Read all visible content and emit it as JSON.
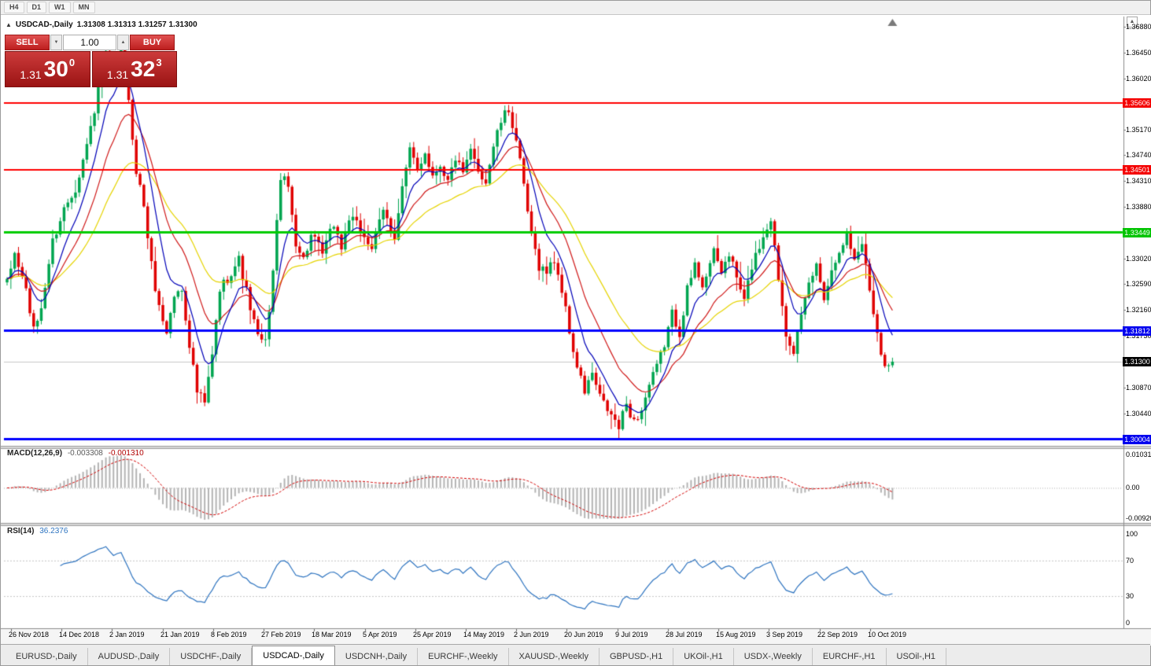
{
  "toolbar": {
    "timeframes": [
      "H4",
      "D1",
      "W1",
      "MN"
    ]
  },
  "window": {
    "scroll_up_icon": "▲"
  },
  "chart": {
    "title": "USDCAD-,Daily",
    "ohlc": "1.31308 1.31313 1.31257 1.31300",
    "collapse_icon": "▲"
  },
  "trade_panel": {
    "sell_label": "SELL",
    "buy_label": "BUY",
    "volume": "1.00",
    "spin_up_icon": "▲",
    "spin_down_icon": "▼",
    "sell_price": {
      "main": "1.31",
      "pips": "30",
      "sup": "0"
    },
    "buy_price": {
      "main": "1.31",
      "pips": "32",
      "sup": "3"
    }
  },
  "price_axis": {
    "ticks": [
      "1.36880",
      "1.36450",
      "1.36020",
      "1.35170",
      "1.34740",
      "1.34310",
      "1.33880",
      "1.33020",
      "1.32590",
      "1.32160",
      "1.31730",
      "1.30870",
      "1.30440"
    ],
    "tick_values": [
      1.3688,
      1.3645,
      1.3602,
      1.3517,
      1.3474,
      1.3431,
      1.3388,
      1.3302,
      1.3259,
      1.3216,
      1.3173,
      1.3087,
      1.3044
    ],
    "badges": [
      {
        "label": "1.35606",
        "value": 1.35606,
        "color": "#f40000",
        "type": "resistance-line"
      },
      {
        "label": "1.34501",
        "value": 1.34501,
        "color": "#f40000",
        "type": "resistance-line"
      },
      {
        "label": "1.33449",
        "value": 1.33449,
        "color": "#00c400",
        "type": "support-line"
      },
      {
        "label": "1.31812",
        "value": 1.31812,
        "color": "#0000ee",
        "type": "support-line"
      },
      {
        "label": "1.30004",
        "value": 1.30004,
        "color": "#0000ee",
        "type": "support-line"
      },
      {
        "label": "1.31300",
        "value": 1.313,
        "color": "#000000",
        "type": "current-price"
      }
    ]
  },
  "macd": {
    "name": "MACD(12,26,9)",
    "value_main": "-0.003308",
    "value_signal": "-0.001310",
    "axis": [
      "0.010311",
      "0.00",
      "-0.009203"
    ]
  },
  "rsi": {
    "name": "RSI(14)",
    "value": "36.2376",
    "axis": [
      "100",
      "70",
      "30",
      "0"
    ]
  },
  "date_axis": [
    "26 Nov 2018",
    "14 Dec 2018",
    "2 Jan 2019",
    "21 Jan 2019",
    "8 Feb 2019",
    "27 Feb 2019",
    "18 Mar 2019",
    "5 Apr 2019",
    "25 Apr 2019",
    "14 May 2019",
    "2 Jun 2019",
    "20 Jun 2019",
    "9 Jul 2019",
    "28 Jul 2019",
    "15 Aug 2019",
    "3 Sep 2019",
    "22 Sep 2019",
    "10 Oct 2019"
  ],
  "tabs": [
    "EURUSD-,Daily",
    "AUDUSD-,Daily",
    "USDCHF-,Daily",
    "USDCAD-,Daily",
    "USDCNH-,Daily",
    "EURCHF-,Weekly",
    "XAUUSD-,Weekly",
    "GBPUSD-,H1",
    "UKOil-,H1",
    "USDX-,Weekly",
    "EURCHF-,H1",
    "USOil-,H1"
  ],
  "active_tab": "USDCAD-,Daily",
  "chart_data": {
    "type": "candlestick",
    "symbol": "USDCAD-",
    "timeframe": "Daily",
    "current_bar": {
      "open": 1.31308,
      "high": 1.31313,
      "low": 1.31257,
      "close": 1.313
    },
    "bid": 1.313,
    "ask": 1.31323,
    "num_candles": 234,
    "last_close": 1.313,
    "y_range": [
      1.299,
      1.3705
    ],
    "price_path_anchors": [
      [
        0,
        1.326
      ],
      [
        2,
        1.331
      ],
      [
        5,
        1.325
      ],
      [
        7,
        1.318
      ],
      [
        9,
        1.322
      ],
      [
        12,
        1.333
      ],
      [
        15,
        1.3385
      ],
      [
        18,
        1.342
      ],
      [
        21,
        1.349
      ],
      [
        24,
        1.358
      ],
      [
        26,
        1.364
      ],
      [
        28,
        1.36
      ],
      [
        30,
        1.366
      ],
      [
        32,
        1.356
      ],
      [
        34,
        1.345
      ],
      [
        36,
        1.339
      ],
      [
        38,
        1.329
      ],
      [
        40,
        1.322
      ],
      [
        42,
        1.318
      ],
      [
        44,
        1.324
      ],
      [
        46,
        1.325
      ],
      [
        48,
        1.316
      ],
      [
        50,
        1.308
      ],
      [
        52,
        1.306
      ],
      [
        54,
        1.314
      ],
      [
        56,
        1.325
      ],
      [
        58,
        1.327
      ],
      [
        61,
        1.33
      ],
      [
        64,
        1.322
      ],
      [
        66,
        1.317
      ],
      [
        68,
        1.316
      ],
      [
        70,
        1.328
      ],
      [
        72,
        1.344
      ],
      [
        74,
        1.342
      ],
      [
        76,
        1.333
      ],
      [
        78,
        1.33
      ],
      [
        80,
        1.334
      ],
      [
        83,
        1.331
      ],
      [
        86,
        1.336
      ],
      [
        88,
        1.332
      ],
      [
        90,
        1.337
      ],
      [
        93,
        1.335
      ],
      [
        96,
        1.332
      ],
      [
        99,
        1.338
      ],
      [
        102,
        1.334
      ],
      [
        104,
        1.342
      ],
      [
        106,
        1.348
      ],
      [
        108,
        1.345
      ],
      [
        110,
        1.348
      ],
      [
        112,
        1.344
      ],
      [
        114,
        1.346
      ],
      [
        116,
        1.343
      ],
      [
        118,
        1.347
      ],
      [
        120,
        1.344
      ],
      [
        122,
        1.348
      ],
      [
        124,
        1.345
      ],
      [
        126,
        1.343
      ],
      [
        128,
        1.349
      ],
      [
        130,
        1.353
      ],
      [
        132,
        1.355
      ],
      [
        134,
        1.35
      ],
      [
        136,
        1.342
      ],
      [
        138,
        1.334
      ],
      [
        140,
        1.329
      ],
      [
        142,
        1.328
      ],
      [
        144,
        1.33
      ],
      [
        146,
        1.325
      ],
      [
        148,
        1.318
      ],
      [
        150,
        1.312
      ],
      [
        152,
        1.308
      ],
      [
        154,
        1.311
      ],
      [
        156,
        1.307
      ],
      [
        159,
        1.304
      ],
      [
        161,
        1.302
      ],
      [
        163,
        1.306
      ],
      [
        165,
        1.303
      ],
      [
        167,
        1.305
      ],
      [
        169,
        1.309
      ],
      [
        171,
        1.312
      ],
      [
        173,
        1.316
      ],
      [
        175,
        1.321
      ],
      [
        177,
        1.318
      ],
      [
        179,
        1.325
      ],
      [
        181,
        1.329
      ],
      [
        183,
        1.326
      ],
      [
        186,
        1.331
      ],
      [
        188,
        1.328
      ],
      [
        190,
        1.331
      ],
      [
        192,
        1.327
      ],
      [
        194,
        1.323
      ],
      [
        196,
        1.329
      ],
      [
        199,
        1.334
      ],
      [
        201,
        1.337
      ],
      [
        203,
        1.327
      ],
      [
        205,
        1.318
      ],
      [
        207,
        1.315
      ],
      [
        209,
        1.32
      ],
      [
        211,
        1.326
      ],
      [
        213,
        1.329
      ],
      [
        215,
        1.324
      ],
      [
        217,
        1.328
      ],
      [
        219,
        1.332
      ],
      [
        221,
        1.334
      ],
      [
        223,
        1.33
      ],
      [
        225,
        1.333
      ],
      [
        227,
        1.325
      ],
      [
        229,
        1.318
      ],
      [
        231,
        1.312
      ],
      [
        233,
        1.313
      ]
    ],
    "horizontal_lines": [
      {
        "price": 1.35606,
        "color": "#ff0000",
        "width": 2
      },
      {
        "price": 1.34501,
        "color": "#ff0000",
        "width": 2
      },
      {
        "price": 1.33449,
        "color": "#00cc00",
        "width": 3
      },
      {
        "price": 1.31812,
        "color": "#0000ff",
        "width": 3
      },
      {
        "price": 1.30004,
        "color": "#0000ff",
        "width": 3
      }
    ],
    "current_price_line": {
      "price": 1.313,
      "color": "#c8c8c8"
    },
    "indicators": {
      "moving_averages": [
        {
          "period": 34,
          "color": "#e6d400"
        },
        {
          "period": 17,
          "color": "#d01818"
        },
        {
          "period": 8,
          "color": "#0000b8"
        }
      ],
      "macd": {
        "params": [
          12,
          26,
          9
        ],
        "current_main": -0.003308,
        "current_signal": -0.00131,
        "range": [
          -0.009203,
          0.010311
        ],
        "histogram_color": "#b4b4b4",
        "signal_color": "#d40000"
      },
      "rsi": {
        "period": 14,
        "current": 36.2376,
        "levels": [
          30,
          70
        ],
        "color": "#2e74c0"
      }
    },
    "colors": {
      "up": "#00a550",
      "down": "#e00000",
      "background": "#ffffff"
    }
  }
}
